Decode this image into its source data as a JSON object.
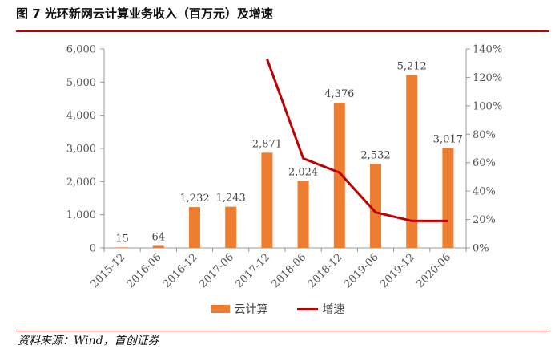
{
  "header": {
    "title": "图 7 光环新网云计算业务收入（百万元）及增速"
  },
  "footer": {
    "source": "资料来源：Wind，首创证券"
  },
  "chart_data": {
    "type": "bar",
    "categories": [
      "2015-12",
      "2016-06",
      "2016-12",
      "2017-06",
      "2017-12",
      "2018-06",
      "2018-12",
      "2019-06",
      "2019-12",
      "2020-06"
    ],
    "series": [
      {
        "name": "云计算",
        "type": "bar",
        "axis": "left",
        "color": "#ed7d31",
        "values": [
          15,
          64,
          1232,
          1243,
          2871,
          2024,
          4376,
          2532,
          5212,
          3017
        ],
        "labels": [
          "15",
          "64",
          "1,232",
          "1,243",
          "2,871",
          "2,024",
          "4,376",
          "2,532",
          "5,212",
          "3,017"
        ]
      },
      {
        "name": "增速",
        "type": "line",
        "axis": "right",
        "color": "#c00000",
        "values": [
          null,
          null,
          null,
          null,
          133,
          63,
          53,
          25,
          19,
          19
        ]
      }
    ],
    "yleft": {
      "min": 0,
      "max": 6000,
      "ticks": [
        0,
        1000,
        2000,
        3000,
        4000,
        5000,
        6000
      ],
      "tick_labels": [
        "0",
        "1,000",
        "2,000",
        "3,000",
        "4,000",
        "5,000",
        "6,000"
      ]
    },
    "yright": {
      "min": 0,
      "max": 140,
      "ticks": [
        0,
        20,
        40,
        60,
        80,
        100,
        120,
        140
      ],
      "tick_labels": [
        "0%",
        "20%",
        "40%",
        "60%",
        "80%",
        "100%",
        "120%",
        "140%"
      ]
    },
    "grid": false,
    "legend_position": "bottom"
  }
}
